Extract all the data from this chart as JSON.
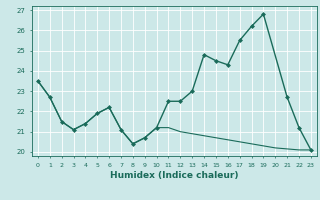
{
  "xlabel": "Humidex (Indice chaleur)",
  "bg_color": "#cce8e8",
  "grid_color": "#ffffff",
  "line_color": "#1a6b5a",
  "xlim": [
    -0.5,
    23.5
  ],
  "ylim": [
    19.8,
    27.2
  ],
  "yticks": [
    20,
    21,
    22,
    23,
    24,
    25,
    26,
    27
  ],
  "xticks": [
    0,
    1,
    2,
    3,
    4,
    5,
    6,
    7,
    8,
    9,
    10,
    11,
    12,
    13,
    14,
    15,
    16,
    17,
    18,
    19,
    20,
    21,
    22,
    23
  ],
  "line1_x": [
    0,
    1,
    2,
    3,
    4,
    5,
    6,
    7,
    8,
    9,
    10,
    11,
    12,
    13,
    14,
    15,
    16,
    17,
    18,
    19,
    21,
    22,
    23
  ],
  "line1_y": [
    23.5,
    22.7,
    21.5,
    21.1,
    21.4,
    21.9,
    22.2,
    21.1,
    20.4,
    20.7,
    21.2,
    22.5,
    22.5,
    23.0,
    24.8,
    24.5,
    24.3,
    25.5,
    26.2,
    26.8,
    22.7,
    21.2,
    20.1
  ],
  "line2_x": [
    0,
    1,
    2,
    3,
    4,
    5,
    6,
    7,
    8,
    9,
    10,
    11,
    12,
    13,
    14,
    15,
    16,
    17,
    18,
    19,
    20,
    21,
    22,
    23
  ],
  "line2_y": [
    23.5,
    22.7,
    21.5,
    21.1,
    21.4,
    21.9,
    22.2,
    21.1,
    20.4,
    20.7,
    21.2,
    21.2,
    21.0,
    20.9,
    20.8,
    20.7,
    20.6,
    20.5,
    20.4,
    20.3,
    20.2,
    20.15,
    20.1,
    20.1
  ]
}
